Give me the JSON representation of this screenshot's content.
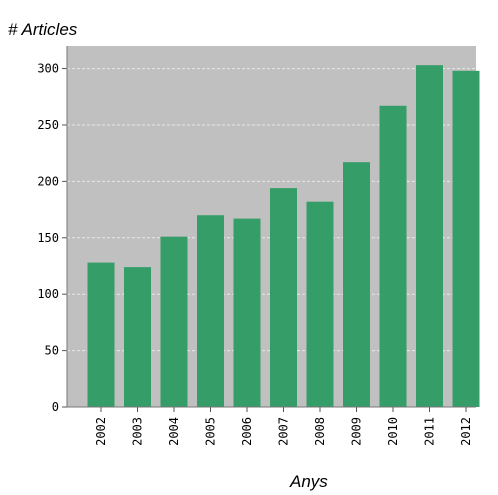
{
  "chart_data": {
    "type": "bar",
    "ylabel": "# Articles",
    "xlabel": "Anys",
    "categories": [
      "2002",
      "2003",
      "2004",
      "2005",
      "2006",
      "2007",
      "2008",
      "2009",
      "2010",
      "2011",
      "2012"
    ],
    "values": [
      128,
      124,
      151,
      170,
      167,
      194,
      182,
      217,
      267,
      303,
      298
    ],
    "ylim": [
      0,
      320
    ],
    "yticks": [
      0,
      50,
      100,
      150,
      200,
      250,
      300
    ],
    "grid": true,
    "colors": {
      "bar": "#359e68",
      "plot_background": "#c0c0c0",
      "grid": "#e8e8e8"
    }
  }
}
